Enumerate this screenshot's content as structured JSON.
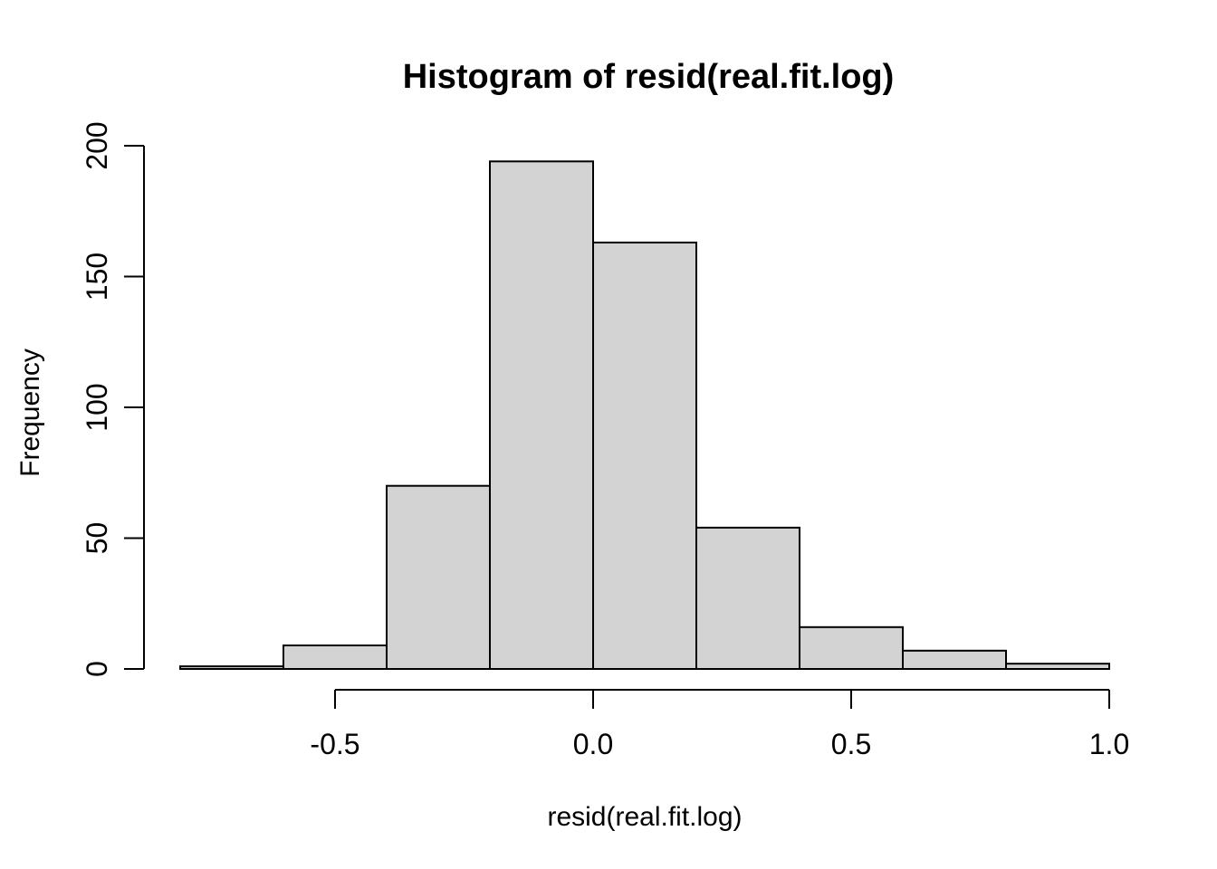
{
  "page": {
    "background": "#FFFFFF"
  },
  "chart_data": {
    "type": "bar",
    "subtype": "histogram",
    "title": "Histogram of resid(real.fit.log)",
    "xlabel": "resid(real.fit.log)",
    "ylabel": "Frequency",
    "bin_edges": [
      -0.8,
      -0.6,
      -0.4,
      -0.2,
      0.0,
      0.2,
      0.4,
      0.6,
      0.8,
      1.0
    ],
    "counts": [
      1,
      9,
      70,
      194,
      163,
      54,
      16,
      7,
      2
    ],
    "x_ticks": [
      {
        "value": -0.5,
        "label": "-0.5"
      },
      {
        "value": 0.0,
        "label": "0.0"
      },
      {
        "value": 0.5,
        "label": "0.5"
      },
      {
        "value": 1.0,
        "label": "1.0"
      }
    ],
    "y_ticks": [
      {
        "value": 0,
        "label": "0"
      },
      {
        "value": 50,
        "label": "50"
      },
      {
        "value": 100,
        "label": "100"
      },
      {
        "value": 150,
        "label": "150"
      },
      {
        "value": 200,
        "label": "200"
      }
    ],
    "xlim": [
      -0.8,
      1.0
    ],
    "ylim": [
      0,
      200
    ],
    "grid": false,
    "legend": "none",
    "colors": {
      "bar_fill": "#D3D3D3",
      "bar_stroke": "#000000",
      "axis": "#000000",
      "text": "#000000",
      "background": "#FFFFFF"
    }
  }
}
